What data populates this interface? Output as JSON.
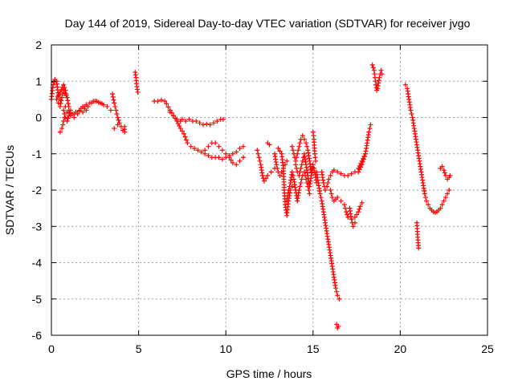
{
  "chart_data": {
    "type": "scatter",
    "title": "Day 144 of 2019, Sidereal Day-to-day VTEC variation (SDTVAR) for receiver jvgo",
    "xlabel": "GPS time / hours",
    "ylabel": "SDTVAR / TECUs",
    "xlim": [
      0,
      25
    ],
    "ylim": [
      -6,
      2
    ],
    "xticks": [
      "0",
      "5",
      "10",
      "15",
      "20",
      "25"
    ],
    "yticks": [
      "-6",
      "-5",
      "-4",
      "-3",
      "-2",
      "-1",
      "0",
      "1",
      "2"
    ],
    "grid": true,
    "marker": "plus",
    "color": "#ff0000",
    "segments": [
      [
        [
          0.0,
          0.5
        ],
        [
          0.1,
          0.9
        ],
        [
          0.2,
          1.05
        ],
        [
          0.3,
          1.0
        ],
        [
          0.4,
          0.6
        ],
        [
          0.5,
          0.5
        ]
      ],
      [
        [
          0.3,
          0.5
        ],
        [
          0.5,
          0.7
        ],
        [
          0.7,
          0.9
        ],
        [
          0.8,
          0.75
        ],
        [
          0.9,
          0.55
        ],
        [
          1.0,
          0.3
        ]
      ],
      [
        [
          0.4,
          0.4
        ],
        [
          0.5,
          0.3
        ],
        [
          0.6,
          0.55
        ],
        [
          0.7,
          0.75
        ],
        [
          0.85,
          0.6
        ]
      ],
      [
        [
          0.5,
          -0.4
        ],
        [
          0.6,
          -0.3
        ],
        [
          0.7,
          -0.1
        ],
        [
          0.75,
          0.0
        ]
      ],
      [
        [
          0.7,
          0.2
        ],
        [
          0.8,
          0.0
        ],
        [
          0.9,
          -0.1
        ],
        [
          1.0,
          0.05
        ],
        [
          1.1,
          0.2
        ],
        [
          1.3,
          0.1
        ]
      ],
      [
        [
          0.8,
          0.3
        ],
        [
          1.0,
          0.2
        ],
        [
          1.2,
          0.1
        ],
        [
          1.4,
          0.15
        ],
        [
          1.6,
          0.2
        ],
        [
          1.8,
          0.15
        ],
        [
          2.0,
          0.2
        ]
      ],
      [
        [
          0.9,
          0.15
        ],
        [
          1.1,
          0.05
        ],
        [
          1.3,
          0.0
        ],
        [
          1.5,
          0.1
        ],
        [
          1.7,
          0.25
        ],
        [
          1.9,
          0.3
        ],
        [
          2.0,
          0.35
        ]
      ],
      [
        [
          1.8,
          0.3
        ],
        [
          2.0,
          0.35
        ],
        [
          2.2,
          0.4
        ],
        [
          2.4,
          0.45
        ],
        [
          2.6,
          0.45
        ],
        [
          2.8,
          0.4
        ],
        [
          3.0,
          0.35
        ],
        [
          3.2,
          0.3
        ],
        [
          3.4,
          0.2
        ]
      ],
      [
        [
          1.9,
          0.25
        ],
        [
          2.1,
          0.3
        ],
        [
          2.3,
          0.4
        ],
        [
          2.5,
          0.45
        ],
        [
          2.7,
          0.42
        ],
        [
          2.9,
          0.38
        ]
      ],
      [
        [
          3.5,
          0.65
        ],
        [
          3.6,
          0.4
        ],
        [
          3.7,
          0.2
        ],
        [
          3.8,
          0.0
        ],
        [
          3.9,
          -0.15
        ]
      ],
      [
        [
          3.6,
          -0.3
        ],
        [
          3.8,
          -0.2
        ],
        [
          4.0,
          -0.25
        ],
        [
          4.1,
          -0.35
        ],
        [
          4.2,
          -0.4
        ],
        [
          4.2,
          -0.25
        ]
      ],
      [
        [
          4.8,
          1.25
        ],
        [
          4.85,
          1.1
        ],
        [
          4.9,
          0.85
        ],
        [
          4.95,
          0.7
        ]
      ],
      [
        [
          5.9,
          0.45
        ],
        [
          6.1,
          0.45
        ],
        [
          6.3,
          0.48
        ],
        [
          6.5,
          0.45
        ],
        [
          6.6,
          0.38
        ],
        [
          6.8,
          0.2
        ]
      ],
      [
        [
          6.8,
          0.15
        ],
        [
          7.0,
          0.05
        ],
        [
          7.2,
          -0.05
        ],
        [
          7.4,
          -0.1
        ],
        [
          7.5,
          -0.05
        ],
        [
          7.7,
          -0.1
        ],
        [
          7.9,
          -0.05
        ],
        [
          8.1,
          -0.1
        ],
        [
          8.3,
          -0.1
        ],
        [
          8.5,
          -0.15
        ],
        [
          8.7,
          -0.2
        ],
        [
          8.9,
          -0.18
        ],
        [
          9.1,
          -0.2
        ],
        [
          9.3,
          -0.15
        ],
        [
          9.5,
          -0.1
        ],
        [
          9.7,
          -0.05
        ],
        [
          9.85,
          -0.05
        ]
      ],
      [
        [
          6.8,
          0.2
        ],
        [
          7.0,
          0.05
        ],
        [
          7.2,
          -0.1
        ],
        [
          7.4,
          -0.3
        ],
        [
          7.6,
          -0.45
        ],
        [
          7.8,
          -0.7
        ],
        [
          8.0,
          -0.8
        ],
        [
          8.2,
          -0.85
        ],
        [
          8.4,
          -0.9
        ],
        [
          8.6,
          -0.95
        ],
        [
          8.8,
          -1.0
        ],
        [
          9.0,
          -1.05
        ],
        [
          9.2,
          -1.1
        ],
        [
          9.4,
          -1.1
        ],
        [
          9.6,
          -1.1
        ],
        [
          9.8,
          -1.15
        ],
        [
          10.0,
          -1.1
        ],
        [
          10.2,
          -1.05
        ],
        [
          10.4,
          -1.0
        ],
        [
          10.6,
          -0.95
        ],
        [
          10.8,
          -0.85
        ],
        [
          11.0,
          -0.8
        ]
      ],
      [
        [
          8.8,
          -0.9
        ],
        [
          9.0,
          -0.8
        ],
        [
          9.2,
          -0.7
        ],
        [
          9.4,
          -0.7
        ],
        [
          9.6,
          -0.8
        ],
        [
          9.8,
          -0.9
        ],
        [
          10.0,
          -1.0
        ],
        [
          10.2,
          -1.1
        ],
        [
          10.4,
          -1.25
        ],
        [
          10.6,
          -1.3
        ],
        [
          10.8,
          -1.2
        ],
        [
          11.0,
          -1.1
        ]
      ],
      [
        [
          11.8,
          -0.9
        ],
        [
          11.9,
          -1.1
        ],
        [
          12.0,
          -1.3
        ],
        [
          12.1,
          -1.6
        ],
        [
          12.2,
          -1.75
        ],
        [
          12.4,
          -1.6
        ],
        [
          12.6,
          -1.5
        ],
        [
          12.8,
          -1.4
        ]
      ],
      [
        [
          12.4,
          -0.7
        ],
        [
          12.5,
          -0.75
        ]
      ],
      [
        [
          12.8,
          -1.0
        ],
        [
          12.9,
          -1.3
        ],
        [
          13.0,
          -1.5
        ],
        [
          13.1,
          -1.6
        ],
        [
          13.2,
          -1.5
        ],
        [
          13.3,
          -1.4
        ],
        [
          13.4,
          -1.3
        ],
        [
          13.5,
          -1.2
        ]
      ],
      [
        [
          13.0,
          -0.85
        ],
        [
          13.2,
          -1.0
        ],
        [
          13.3,
          -1.4
        ],
        [
          13.35,
          -2.0
        ],
        [
          13.4,
          -2.4
        ],
        [
          13.5,
          -2.7
        ],
        [
          13.6,
          -2.3
        ],
        [
          13.7,
          -2.0
        ],
        [
          13.8,
          -1.9
        ]
      ],
      [
        [
          13.5,
          -2.3
        ],
        [
          13.6,
          -2.0
        ],
        [
          13.7,
          -1.8
        ],
        [
          13.8,
          -1.5
        ],
        [
          13.9,
          -1.7
        ],
        [
          14.0,
          -2.0
        ],
        [
          14.1,
          -2.3
        ],
        [
          14.2,
          -2.0
        ],
        [
          14.3,
          -1.8
        ],
        [
          14.4,
          -1.6
        ],
        [
          14.5,
          -1.5
        ],
        [
          14.6,
          -1.7
        ],
        [
          14.7,
          -1.9
        ],
        [
          14.8,
          -2.1
        ]
      ],
      [
        [
          13.8,
          -0.8
        ],
        [
          13.9,
          -1.0
        ],
        [
          14.0,
          -1.2
        ],
        [
          14.1,
          -1.0
        ],
        [
          14.2,
          -0.8
        ],
        [
          14.3,
          -0.6
        ],
        [
          14.4,
          -0.5
        ],
        [
          14.5,
          -0.6
        ],
        [
          14.6,
          -0.7
        ],
        [
          14.7,
          -0.9
        ],
        [
          14.8,
          -1.2
        ],
        [
          14.9,
          -1.5
        ]
      ],
      [
        [
          14.0,
          -1.3
        ],
        [
          14.1,
          -1.5
        ],
        [
          14.2,
          -1.6
        ],
        [
          14.3,
          -1.4
        ],
        [
          14.4,
          -1.2
        ],
        [
          14.5,
          -1.0
        ],
        [
          14.6,
          -1.3
        ],
        [
          14.7,
          -1.6
        ],
        [
          14.8,
          -1.9
        ],
        [
          14.9,
          -1.6
        ],
        [
          15.0,
          -1.3
        ],
        [
          15.1,
          -1.5
        ],
        [
          15.2,
          -1.8
        ]
      ],
      [
        [
          15.0,
          -0.4
        ],
        [
          15.05,
          -0.6
        ],
        [
          15.1,
          -1.0
        ],
        [
          15.15,
          -1.2
        ]
      ],
      [
        [
          15.2,
          -1.5
        ],
        [
          15.3,
          -1.8
        ],
        [
          15.4,
          -2.1
        ],
        [
          15.5,
          -2.3
        ],
        [
          15.6,
          -2.6
        ],
        [
          15.7,
          -2.9
        ],
        [
          15.8,
          -3.2
        ],
        [
          15.9,
          -3.5
        ],
        [
          16.0,
          -3.8
        ],
        [
          16.1,
          -4.1
        ],
        [
          16.2,
          -4.4
        ],
        [
          16.3,
          -4.7
        ],
        [
          16.4,
          -4.9
        ],
        [
          16.5,
          -5.0
        ]
      ],
      [
        [
          15.5,
          -1.5
        ],
        [
          15.6,
          -1.8
        ],
        [
          15.7,
          -2.0
        ],
        [
          15.8,
          -1.9
        ],
        [
          15.9,
          -1.7
        ],
        [
          16.0,
          -1.6
        ],
        [
          16.1,
          -1.5
        ],
        [
          16.2,
          -1.45
        ],
        [
          16.4,
          -1.5
        ],
        [
          16.6,
          -1.55
        ],
        [
          16.8,
          -1.6
        ],
        [
          17.0,
          -1.6
        ],
        [
          17.2,
          -1.55
        ],
        [
          17.4,
          -1.5
        ],
        [
          17.6,
          -1.4
        ],
        [
          17.8,
          -1.2
        ],
        [
          18.0,
          -1.0
        ]
      ],
      [
        [
          16.0,
          -2.0
        ],
        [
          16.1,
          -2.2
        ],
        [
          16.2,
          -2.3
        ],
        [
          16.3,
          -2.25
        ],
        [
          16.4,
          -2.2
        ],
        [
          16.6,
          -2.3
        ],
        [
          16.8,
          -2.4
        ],
        [
          16.9,
          -2.6
        ],
        [
          17.0,
          -2.75
        ],
        [
          17.2,
          -2.8
        ],
        [
          17.4,
          -2.75
        ],
        [
          17.6,
          -2.6
        ],
        [
          17.7,
          -2.45
        ],
        [
          17.8,
          -2.35
        ]
      ],
      [
        [
          16.35,
          -5.7
        ],
        [
          16.4,
          -5.8
        ],
        [
          16.45,
          -5.75
        ]
      ],
      [
        [
          17.1,
          -2.5
        ],
        [
          17.2,
          -2.8
        ],
        [
          17.3,
          -3.0
        ],
        [
          17.4,
          -2.9
        ]
      ],
      [
        [
          17.6,
          -1.5
        ],
        [
          17.8,
          -1.3
        ],
        [
          18.0,
          -1.0
        ],
        [
          18.1,
          -0.7
        ],
        [
          18.2,
          -0.4
        ],
        [
          18.3,
          -0.2
        ]
      ],
      [
        [
          18.4,
          1.45
        ],
        [
          18.5,
          1.3
        ],
        [
          18.55,
          1.1
        ],
        [
          18.6,
          0.9
        ],
        [
          18.65,
          0.75
        ],
        [
          18.7,
          0.8
        ],
        [
          18.8,
          1.1
        ],
        [
          18.9,
          1.3
        ],
        [
          18.95,
          1.2
        ]
      ],
      [
        [
          20.3,
          0.9
        ],
        [
          20.4,
          0.8
        ],
        [
          20.5,
          0.5
        ],
        [
          20.6,
          0.2
        ],
        [
          20.7,
          0.0
        ],
        [
          20.8,
          -0.3
        ],
        [
          20.9,
          -0.6
        ],
        [
          21.0,
          -0.9
        ],
        [
          21.1,
          -1.2
        ],
        [
          21.2,
          -1.5
        ],
        [
          21.3,
          -1.8
        ],
        [
          21.4,
          -2.1
        ],
        [
          21.5,
          -2.3
        ],
        [
          21.6,
          -2.4
        ],
        [
          21.7,
          -2.5
        ],
        [
          21.8,
          -2.55
        ],
        [
          21.9,
          -2.6
        ],
        [
          22.0,
          -2.62
        ],
        [
          22.1,
          -2.6
        ],
        [
          22.2,
          -2.55
        ],
        [
          22.3,
          -2.5
        ],
        [
          22.4,
          -2.4
        ],
        [
          22.5,
          -2.3
        ],
        [
          22.6,
          -2.2
        ],
        [
          22.7,
          -2.1
        ],
        [
          22.8,
          -2.0
        ]
      ],
      [
        [
          20.95,
          -2.9
        ],
        [
          21.0,
          -3.3
        ],
        [
          21.05,
          -3.6
        ]
      ],
      [
        [
          22.3,
          -1.4
        ],
        [
          22.4,
          -1.35
        ],
        [
          22.5,
          -1.45
        ],
        [
          22.6,
          -1.6
        ],
        [
          22.7,
          -1.7
        ],
        [
          22.8,
          -1.65
        ],
        [
          22.85,
          -1.6
        ]
      ]
    ]
  }
}
